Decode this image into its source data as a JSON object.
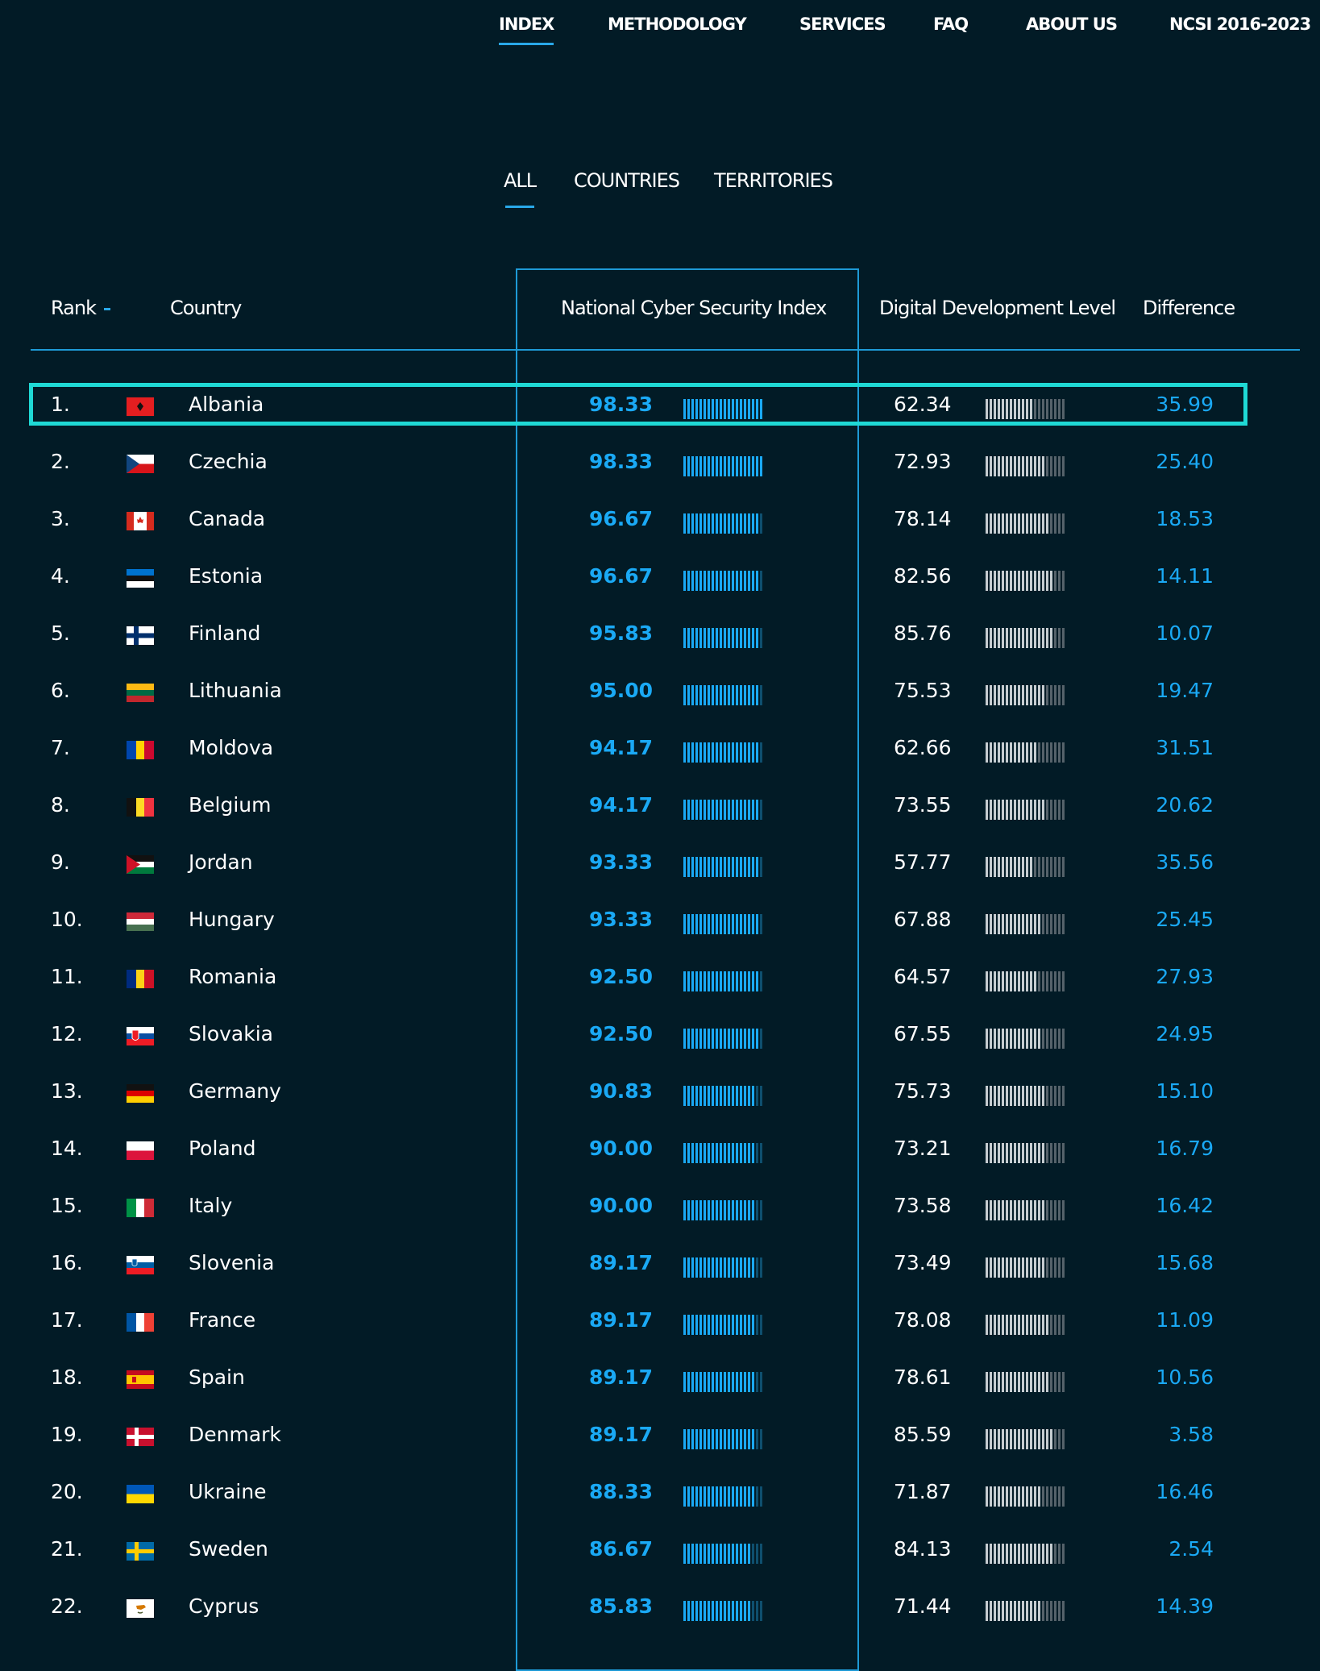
{
  "nav": {
    "items": [
      {
        "label": "INDEX",
        "active": true
      },
      {
        "label": "METHODOLOGY",
        "active": false
      },
      {
        "label": "SERVICES",
        "active": false
      },
      {
        "label": "FAQ",
        "active": false
      },
      {
        "label": "ABOUT US",
        "active": false
      },
      {
        "label": "NCSI 2016-2023",
        "active": false
      }
    ]
  },
  "tabs": [
    {
      "label": "ALL",
      "active": true
    },
    {
      "label": "COUNTRIES",
      "active": false
    },
    {
      "label": "TERRITORIES",
      "active": false
    }
  ],
  "table": {
    "headers": {
      "rank": "Rank",
      "country": "Country",
      "ncsi": "National Cyber Security Index",
      "ddl": "Digital Development Level",
      "difference": "Difference"
    },
    "highlighted_rank": "1.",
    "rows": [
      {
        "rank": "1.",
        "country": "Albania",
        "ncsi": "98.33",
        "ddl": "62.34",
        "difference": "35.99",
        "flag": "albania"
      },
      {
        "rank": "2.",
        "country": "Czechia",
        "ncsi": "98.33",
        "ddl": "72.93",
        "difference": "25.40",
        "flag": "czechia"
      },
      {
        "rank": "3.",
        "country": "Canada",
        "ncsi": "96.67",
        "ddl": "78.14",
        "difference": "18.53",
        "flag": "canada"
      },
      {
        "rank": "4.",
        "country": "Estonia",
        "ncsi": "96.67",
        "ddl": "82.56",
        "difference": "14.11",
        "flag": "estonia"
      },
      {
        "rank": "5.",
        "country": "Finland",
        "ncsi": "95.83",
        "ddl": "85.76",
        "difference": "10.07",
        "flag": "finland"
      },
      {
        "rank": "6.",
        "country": "Lithuania",
        "ncsi": "95.00",
        "ddl": "75.53",
        "difference": "19.47",
        "flag": "lithuania"
      },
      {
        "rank": "7.",
        "country": "Moldova",
        "ncsi": "94.17",
        "ddl": "62.66",
        "difference": "31.51",
        "flag": "moldova"
      },
      {
        "rank": "8.",
        "country": "Belgium",
        "ncsi": "94.17",
        "ddl": "73.55",
        "difference": "20.62",
        "flag": "belgium"
      },
      {
        "rank": "9.",
        "country": "Jordan",
        "ncsi": "93.33",
        "ddl": "57.77",
        "difference": "35.56",
        "flag": "jordan"
      },
      {
        "rank": "10.",
        "country": "Hungary",
        "ncsi": "93.33",
        "ddl": "67.88",
        "difference": "25.45",
        "flag": "hungary"
      },
      {
        "rank": "11.",
        "country": "Romania",
        "ncsi": "92.50",
        "ddl": "64.57",
        "difference": "27.93",
        "flag": "romania"
      },
      {
        "rank": "12.",
        "country": "Slovakia",
        "ncsi": "92.50",
        "ddl": "67.55",
        "difference": "24.95",
        "flag": "slovakia"
      },
      {
        "rank": "13.",
        "country": "Germany",
        "ncsi": "90.83",
        "ddl": "75.73",
        "difference": "15.10",
        "flag": "germany"
      },
      {
        "rank": "14.",
        "country": "Poland",
        "ncsi": "90.00",
        "ddl": "73.21",
        "difference": "16.79",
        "flag": "poland"
      },
      {
        "rank": "15.",
        "country": "Italy",
        "ncsi": "90.00",
        "ddl": "73.58",
        "difference": "16.42",
        "flag": "italy"
      },
      {
        "rank": "16.",
        "country": "Slovenia",
        "ncsi": "89.17",
        "ddl": "73.49",
        "difference": "15.68",
        "flag": "slovenia"
      },
      {
        "rank": "17.",
        "country": "France",
        "ncsi": "89.17",
        "ddl": "78.08",
        "difference": "11.09",
        "flag": "france"
      },
      {
        "rank": "18.",
        "country": "Spain",
        "ncsi": "89.17",
        "ddl": "78.61",
        "difference": "10.56",
        "flag": "spain"
      },
      {
        "rank": "19.",
        "country": "Denmark",
        "ncsi": "89.17",
        "ddl": "85.59",
        "difference": "3.58",
        "flag": "denmark"
      },
      {
        "rank": "20.",
        "country": "Ukraine",
        "ncsi": "88.33",
        "ddl": "71.87",
        "difference": "16.46",
        "flag": "ukraine"
      },
      {
        "rank": "21.",
        "country": "Sweden",
        "ncsi": "86.67",
        "ddl": "84.13",
        "difference": "2.54",
        "flag": "sweden"
      },
      {
        "rank": "22.",
        "country": "Cyprus",
        "ncsi": "85.83",
        "ddl": "71.44",
        "difference": "14.39",
        "flag": "cyprus"
      }
    ]
  },
  "colors": {
    "background": "#021b26",
    "accent": "#1aa9f5",
    "highlight_border": "#1fd9d5",
    "column_border": "#1e9ad6"
  }
}
